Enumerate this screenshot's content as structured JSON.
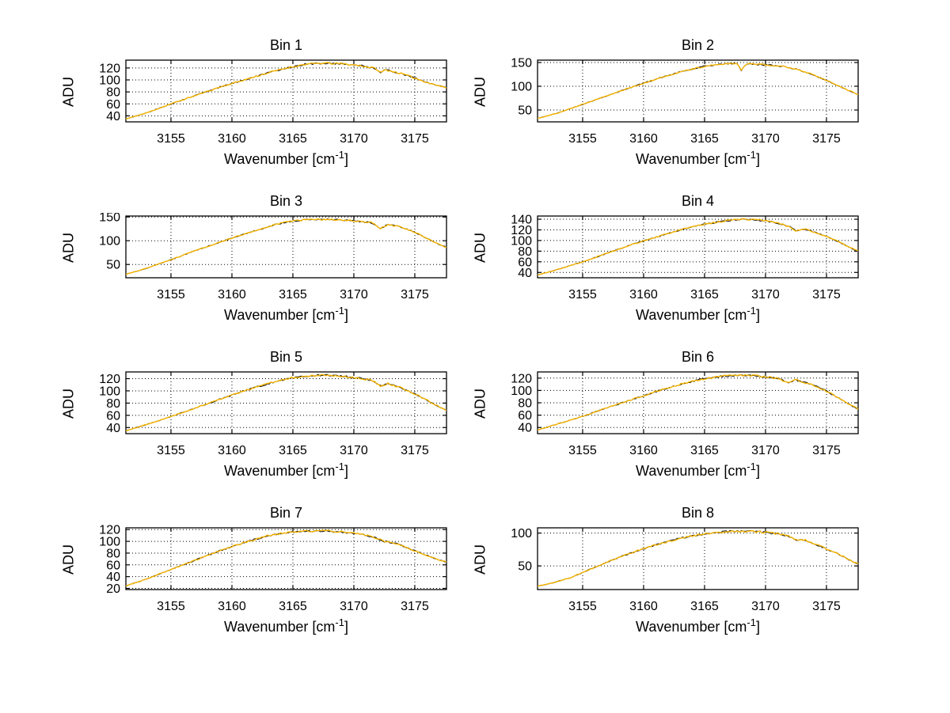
{
  "figure": {
    "background": "#ffffff",
    "ylabel": "ADU",
    "xlabel": {
      "base": "Wavenumber [cm",
      "sup": "-1",
      "end": "]"
    },
    "line_color": "#f7b500",
    "underlay_color": "#1a1a1a",
    "grid_style": "dotted",
    "noise_amplitude": 1.6,
    "xlim": [
      3151.3,
      3177.6
    ],
    "xticks": [
      3155,
      3160,
      3165,
      3170,
      3175
    ]
  },
  "chart_data": [
    {
      "type": "line",
      "title": "Bin 1",
      "ylabel": "ADU",
      "ylim": [
        30,
        133
      ],
      "yticks": [
        40,
        60,
        80,
        100,
        120
      ],
      "keypoints": [
        [
          3151,
          33
        ],
        [
          3153,
          45
        ],
        [
          3155,
          60
        ],
        [
          3157,
          74
        ],
        [
          3159,
          88
        ],
        [
          3161,
          100
        ],
        [
          3163,
          112
        ],
        [
          3164.5,
          120
        ],
        [
          3166,
          126
        ],
        [
          3167.5,
          128
        ],
        [
          3169,
          127
        ],
        [
          3170.5,
          124
        ],
        [
          3171.8,
          119
        ],
        [
          3172.2,
          112
        ],
        [
          3172.6,
          117
        ],
        [
          3174,
          110
        ],
        [
          3175,
          103
        ],
        [
          3176,
          96
        ],
        [
          3177,
          90
        ],
        [
          3178,
          85
        ]
      ]
    },
    {
      "type": "line",
      "title": "Bin 2",
      "ylabel": "ADU",
      "ylim": [
        25,
        155
      ],
      "yticks": [
        50,
        100,
        150
      ],
      "keypoints": [
        [
          3151,
          30
        ],
        [
          3153,
          44
        ],
        [
          3155,
          62
        ],
        [
          3157,
          80
        ],
        [
          3159,
          98
        ],
        [
          3161,
          115
        ],
        [
          3163,
          130
        ],
        [
          3165,
          142
        ],
        [
          3166.5,
          147
        ],
        [
          3167.7,
          148
        ],
        [
          3168,
          133
        ],
        [
          3168.4,
          147
        ],
        [
          3170,
          145
        ],
        [
          3171.5,
          142
        ],
        [
          3172.5,
          136
        ],
        [
          3173.5,
          128
        ],
        [
          3175,
          112
        ],
        [
          3176.5,
          95
        ],
        [
          3178,
          78
        ]
      ]
    },
    {
      "type": "line",
      "title": "Bin 3",
      "ylabel": "ADU",
      "ylim": [
        22,
        152
      ],
      "yticks": [
        50,
        100,
        150
      ],
      "keypoints": [
        [
          3151,
          27
        ],
        [
          3153,
          42
        ],
        [
          3155,
          60
        ],
        [
          3157,
          79
        ],
        [
          3159,
          97
        ],
        [
          3161,
          114
        ],
        [
          3163,
          130
        ],
        [
          3164.5,
          140
        ],
        [
          3166,
          144
        ],
        [
          3168,
          145
        ],
        [
          3170,
          142
        ],
        [
          3171.5,
          138
        ],
        [
          3172.2,
          126
        ],
        [
          3172.8,
          134
        ],
        [
          3174,
          128
        ],
        [
          3175,
          118
        ],
        [
          3176,
          105
        ],
        [
          3177,
          92
        ],
        [
          3178,
          82
        ]
      ]
    },
    {
      "type": "line",
      "title": "Bin 4",
      "ylabel": "ADU",
      "ylim": [
        30,
        146
      ],
      "yticks": [
        40,
        60,
        80,
        100,
        120,
        140
      ],
      "keypoints": [
        [
          3151,
          33
        ],
        [
          3153,
          46
        ],
        [
          3155,
          60
        ],
        [
          3157,
          76
        ],
        [
          3159,
          92
        ],
        [
          3161,
          106
        ],
        [
          3163,
          120
        ],
        [
          3165,
          131
        ],
        [
          3167,
          138
        ],
        [
          3168.5,
          140
        ],
        [
          3170,
          137
        ],
        [
          3171,
          133
        ],
        [
          3172,
          126
        ],
        [
          3172.5,
          118
        ],
        [
          3173.2,
          122
        ],
        [
          3174.5,
          112
        ],
        [
          3176,
          98
        ],
        [
          3177,
          86
        ],
        [
          3178,
          76
        ]
      ]
    },
    {
      "type": "line",
      "title": "Bin 5",
      "ylabel": "ADU",
      "ylim": [
        30,
        131
      ],
      "yticks": [
        40,
        60,
        80,
        100,
        120
      ],
      "keypoints": [
        [
          3151,
          33
        ],
        [
          3153,
          45
        ],
        [
          3155,
          58
        ],
        [
          3157,
          72
        ],
        [
          3159,
          86
        ],
        [
          3161,
          100
        ],
        [
          3163,
          112
        ],
        [
          3164.5,
          120
        ],
        [
          3166,
          124
        ],
        [
          3167.5,
          126
        ],
        [
          3169,
          124
        ],
        [
          3170.5,
          121
        ],
        [
          3171.5,
          117
        ],
        [
          3172.2,
          108
        ],
        [
          3172.8,
          112
        ],
        [
          3174,
          104
        ],
        [
          3175,
          95
        ],
        [
          3176,
          85
        ],
        [
          3177,
          74
        ],
        [
          3178,
          64
        ]
      ]
    },
    {
      "type": "line",
      "title": "Bin 6",
      "ylabel": "ADU",
      "ylim": [
        30,
        130
      ],
      "yticks": [
        40,
        60,
        80,
        100,
        120
      ],
      "keypoints": [
        [
          3151,
          34
        ],
        [
          3153,
          46
        ],
        [
          3155,
          58
        ],
        [
          3157,
          72
        ],
        [
          3159,
          85
        ],
        [
          3161,
          98
        ],
        [
          3163,
          110
        ],
        [
          3165,
          119
        ],
        [
          3166.5,
          123
        ],
        [
          3168,
          125
        ],
        [
          3169.5,
          123
        ],
        [
          3171,
          120
        ],
        [
          3171.8,
          113
        ],
        [
          3172.5,
          117
        ],
        [
          3174,
          108
        ],
        [
          3175,
          99
        ],
        [
          3176,
          88
        ],
        [
          3177,
          76
        ],
        [
          3178,
          66
        ]
      ]
    },
    {
      "type": "line",
      "title": "Bin 7",
      "ylabel": "ADU",
      "ylim": [
        18,
        123
      ],
      "yticks": [
        20,
        40,
        60,
        80,
        100,
        120
      ],
      "keypoints": [
        [
          3151,
          22
        ],
        [
          3153,
          36
        ],
        [
          3155,
          52
        ],
        [
          3157,
          68
        ],
        [
          3159,
          84
        ],
        [
          3161,
          98
        ],
        [
          3163,
          110
        ],
        [
          3164.5,
          115
        ],
        [
          3166,
          117
        ],
        [
          3167.5,
          118
        ],
        [
          3169,
          116
        ],
        [
          3170.5,
          113
        ],
        [
          3171.5,
          108
        ],
        [
          3172.5,
          100
        ],
        [
          3173.5,
          96
        ],
        [
          3174.5,
          88
        ],
        [
          3175.5,
          80
        ],
        [
          3176.5,
          72
        ],
        [
          3178,
          62
        ]
      ]
    },
    {
      "type": "line",
      "title": "Bin 8",
      "ylabel": "ADU",
      "ylim": [
        14,
        108
      ],
      "yticks": [
        50,
        100
      ],
      "keypoints": [
        [
          3151,
          18
        ],
        [
          3152.5,
          24
        ],
        [
          3154,
          32
        ],
        [
          3155.5,
          44
        ],
        [
          3157,
          56
        ],
        [
          3159,
          70
        ],
        [
          3161,
          82
        ],
        [
          3163,
          92
        ],
        [
          3165,
          99
        ],
        [
          3166.5,
          102
        ],
        [
          3168,
          103
        ],
        [
          3169.5,
          102
        ],
        [
          3171,
          99
        ],
        [
          3172,
          95
        ],
        [
          3172.6,
          88
        ],
        [
          3173.2,
          90
        ],
        [
          3174.5,
          80
        ],
        [
          3176,
          68
        ],
        [
          3177,
          58
        ],
        [
          3178,
          50
        ]
      ]
    }
  ]
}
